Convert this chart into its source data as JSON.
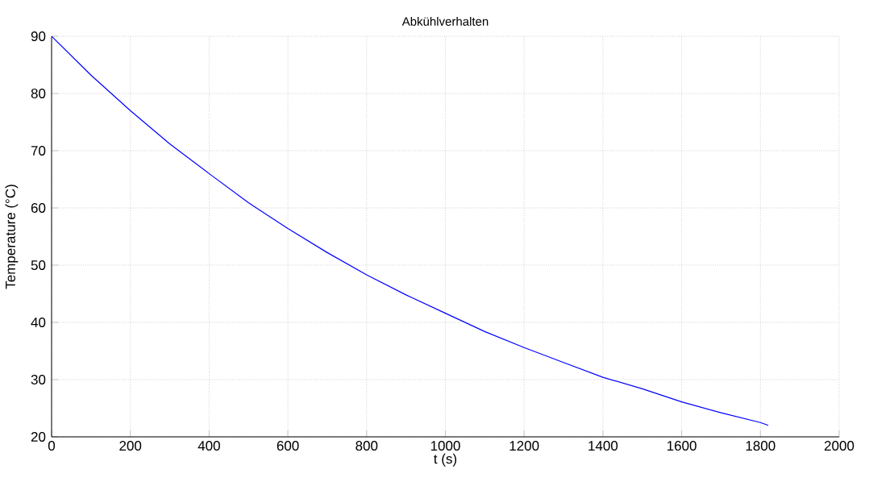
{
  "chart_data": {
    "type": "line",
    "title": "Abkühlverhalten",
    "xlabel": "t (s)",
    "ylabel": "Temperature  (°C)",
    "x": [
      0,
      100,
      200,
      300,
      400,
      500,
      600,
      700,
      800,
      900,
      1000,
      1100,
      1200,
      1300,
      1400,
      1500,
      1600,
      1700,
      1800,
      1820
    ],
    "series": [
      {
        "color": "#0000ff",
        "values": [
          90,
          83.2,
          77.0,
          71.2,
          66.0,
          60.9,
          56.4,
          52.2,
          48.3,
          44.8,
          41.6,
          38.4,
          35.6,
          33.0,
          30.4,
          28.4,
          26.1,
          24.2,
          22.5,
          22.0
        ]
      }
    ],
    "xlim": [
      0,
      2000
    ],
    "ylim": [
      20,
      90
    ],
    "xticks": [
      0,
      200,
      400,
      600,
      800,
      1000,
      1200,
      1400,
      1600,
      1800,
      2000
    ],
    "yticks": [
      20,
      30,
      40,
      50,
      60,
      70,
      80,
      90
    ],
    "grid": true,
    "line_style": "solid"
  }
}
